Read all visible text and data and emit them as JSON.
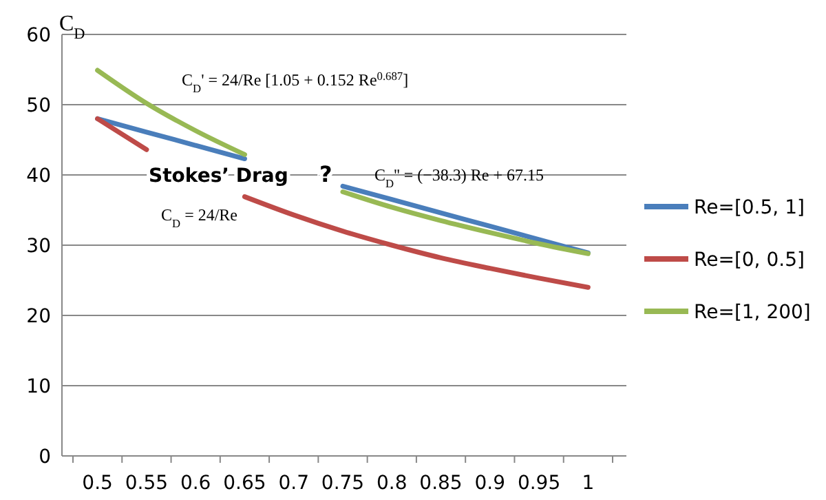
{
  "chart_data": {
    "type": "line",
    "ylabel": "C$_{D}$",
    "categories": [
      "0.5",
      "0.55",
      "0.6",
      "0.65",
      "0.7",
      "0.75",
      "0.8",
      "0.85",
      "0.9",
      "0.95",
      "1"
    ],
    "series": [
      {
        "name": "Re=[0.5, 1]",
        "color": "#4a7ebb",
        "values": [
          48.0,
          46.1,
          44.2,
          42.3,
          null,
          38.4,
          36.5,
          34.6,
          32.7,
          30.8,
          28.9
        ]
      },
      {
        "name": "Re=[0, 0.5]",
        "color": "#be4b48",
        "values": [
          48,
          43.6,
          null,
          36.9,
          34.3,
          32,
          30,
          28.2,
          26.7,
          25.3,
          24
        ]
      },
      {
        "name": "Re=[1, 200]",
        "color": "#98b954",
        "values": [
          54.9,
          50.2,
          46.3,
          42.9,
          null,
          37.6,
          35.4,
          33.5,
          31.8,
          30.2,
          28.8
        ]
      }
    ],
    "ylim": [
      0,
      60
    ],
    "yticks": [
      0,
      10,
      20,
      30,
      40,
      50,
      60
    ],
    "grid": "y",
    "legend": "right",
    "marker": "none",
    "line_style": "solid",
    "annotations": [
      "C$_{D}$' = 24/Re [1.05 + 0.152 Re$^{0.687}$]",
      "C$_{D}$ = 24/Re",
      "C$_{D}$'' = (−38.3) Re + 67.15",
      "Stokes’ Drag",
      "?"
    ]
  }
}
